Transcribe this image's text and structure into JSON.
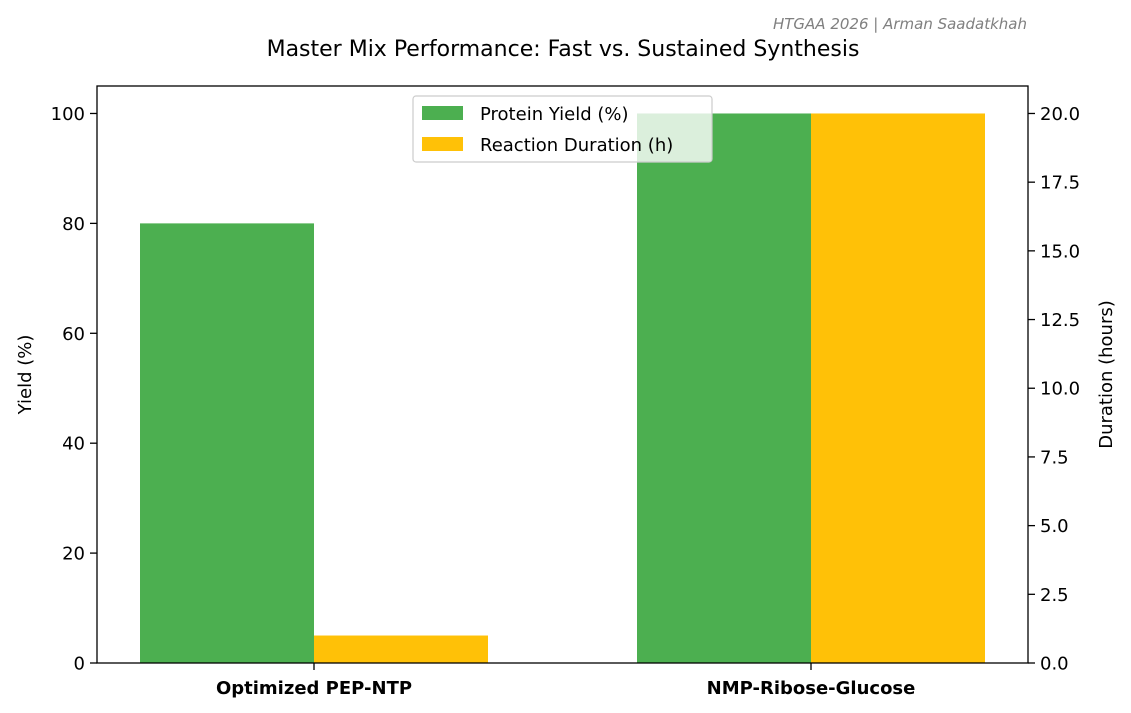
{
  "credit": "HTGAA 2026 | Arman Saadatkhah",
  "chart_data": {
    "type": "bar",
    "title": "Master Mix Performance: Fast vs. Sustained Synthesis",
    "categories": [
      "Optimized PEP-NTP",
      "NMP-Ribose-Glucose"
    ],
    "series": [
      {
        "name": "Protein Yield (%)",
        "axis": "left",
        "color": "#4caf50",
        "values": [
          80,
          100
        ]
      },
      {
        "name": "Reaction Duration (h)",
        "axis": "right",
        "color": "#ffc107",
        "values": [
          1,
          20
        ]
      }
    ],
    "ylabel": "Yield (%)",
    "ylim": [
      0,
      105
    ],
    "yticks": [
      0,
      20,
      40,
      60,
      80,
      100
    ],
    "ytick_labels": [
      "0",
      "20",
      "40",
      "60",
      "80",
      "100"
    ],
    "y2label": "Duration (hours)",
    "y2lim": [
      0,
      21
    ],
    "y2ticks": [
      0,
      2.5,
      5,
      7.5,
      10,
      12.5,
      15,
      17.5,
      20
    ],
    "y2tick_labels": [
      "0.0",
      "2.5",
      "5.0",
      "7.5",
      "10.0",
      "12.5",
      "15.0",
      "17.5",
      "20.0"
    ],
    "legend": {
      "location": "upper center",
      "entries": [
        "Protein Yield (%)",
        "Reaction Duration (h)"
      ]
    },
    "grid": false
  }
}
